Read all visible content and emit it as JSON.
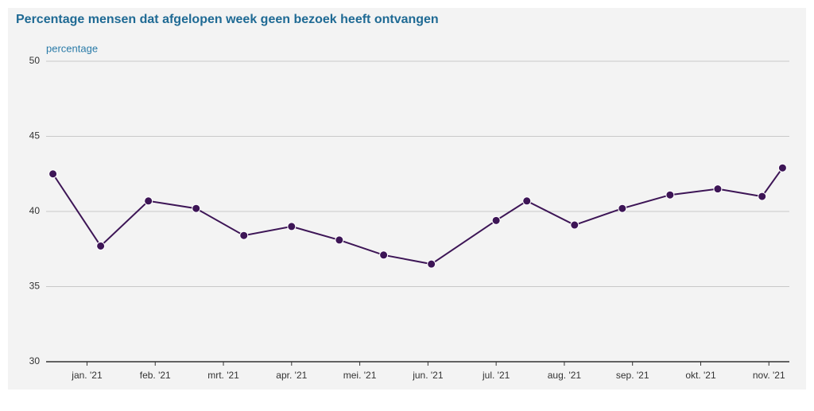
{
  "chart_data": {
    "type": "line",
    "title": "Percentage mensen dat afgelopen week geen bezoek heeft ontvangen",
    "y_label": "percentage",
    "x": [
      -0.5,
      0.2,
      0.9,
      1.6,
      2.3,
      3.0,
      3.7,
      4.35,
      5.05,
      6.0,
      6.45,
      7.15,
      7.85,
      8.55,
      9.25,
      9.9,
      10.2
    ],
    "series": [
      {
        "name": "percentage",
        "color": "#3d1556",
        "values": [
          42.5,
          37.7,
          40.7,
          40.2,
          38.4,
          39.0,
          38.1,
          37.1,
          36.5,
          39.4,
          40.7,
          39.1,
          40.2,
          41.1,
          41.5,
          41.0,
          42.9
        ]
      }
    ],
    "xlim": [
      -0.6,
      10.3
    ],
    "xticks": [
      {
        "value": 0,
        "label": "jan. '21"
      },
      {
        "value": 1,
        "label": "feb. '21"
      },
      {
        "value": 2,
        "label": "mrt. '21"
      },
      {
        "value": 3,
        "label": "apr. '21"
      },
      {
        "value": 4,
        "label": "mei. '21"
      },
      {
        "value": 5,
        "label": "jun. '21"
      },
      {
        "value": 6,
        "label": "jul. '21"
      },
      {
        "value": 7,
        "label": "aug. '21"
      },
      {
        "value": 8,
        "label": "sep. '21"
      },
      {
        "value": 9,
        "label": "okt. '21"
      },
      {
        "value": 10,
        "label": "nov. '21"
      }
    ],
    "ylim": [
      30,
      50
    ],
    "yticks": [
      30,
      35,
      40,
      45,
      50
    ],
    "grid": true
  }
}
